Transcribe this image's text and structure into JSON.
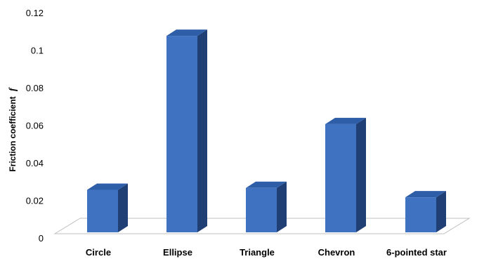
{
  "chart_data": {
    "type": "bar",
    "style": "3d-column",
    "title": "",
    "xlabel": "",
    "ylabel": "Friction coefficient",
    "ylabel_symbol": "f",
    "categories": [
      "Circle",
      "Ellipse",
      "Triangle",
      "Chevron",
      "6-pointed star"
    ],
    "values": [
      0.026,
      0.108,
      0.027,
      0.061,
      0.022
    ],
    "ylim": [
      0,
      0.12
    ],
    "yticks": [
      "0",
      "0.02",
      "0.04",
      "0.06",
      "0.08",
      "0.1",
      "0.12"
    ],
    "ytick_values": [
      0,
      0.02,
      0.04,
      0.06,
      0.08,
      0.1,
      0.12
    ],
    "grid": false,
    "legend": "none",
    "colors": {
      "bar_front": "#3f73c2",
      "bar_side": "#1f3f75",
      "bar_top": "#2f5ea8",
      "floor": "#ffffff",
      "floor_stroke": "#bfbfbf"
    }
  }
}
